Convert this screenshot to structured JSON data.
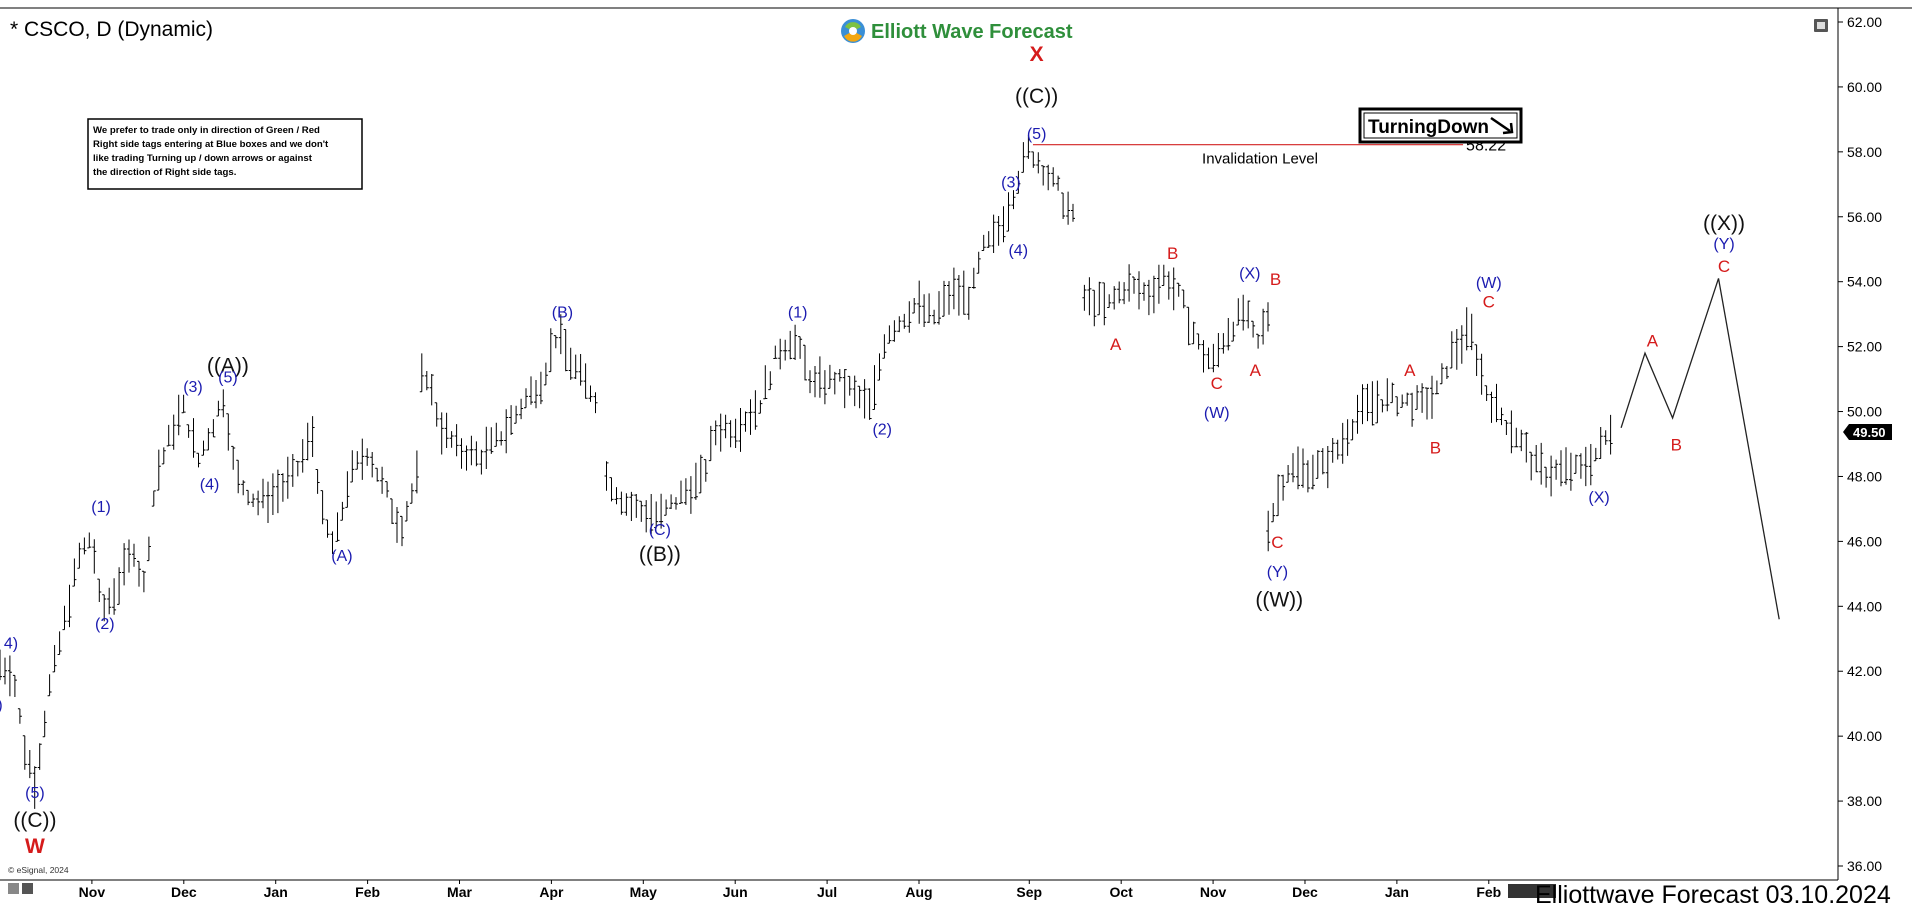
{
  "chart_title": "* CSCO, D (Dynamic)",
  "brand": "Elliott Wave Forecast",
  "disclaimer": [
    "We prefer to trade only in direction of Green / Red",
    "Right side tags entering at Blue boxes and we don't",
    "like trading Turning up / down arrows or against",
    "the direction of Right side tags."
  ],
  "tag_label": "TurningDown",
  "invalidation_label": "Invalidation Level",
  "invalidation_value": "58.22",
  "current_price": "49.50",
  "copyright": "© eSignal, 2024",
  "footer": "Elliottwave Forecast 03.10.2024",
  "colors": {
    "blue": "#1b1bb0",
    "red": "#d51b1b",
    "black": "#111111",
    "brand_green": "#2f8f3b",
    "invalidation": "#d22222"
  },
  "chart_data": {
    "type": "ohlc",
    "ylim": [
      36,
      62
    ],
    "y_ticks": [
      "36.00",
      "38.00",
      "40.00",
      "42.00",
      "44.00",
      "46.00",
      "48.00",
      "50.00",
      "52.00",
      "54.00",
      "56.00",
      "58.00",
      "60.00",
      "62.00"
    ],
    "x_ticks": [
      "Nov",
      "Dec",
      "Jan",
      "Feb",
      "Mar",
      "Apr",
      "May",
      "Jun",
      "Jul",
      "Aug",
      "Sep",
      "Oct",
      "Nov",
      "Dec",
      "Jan",
      "Feb"
    ],
    "x_range": [
      0,
      100
    ],
    "x_tick_pos": [
      5,
      10,
      15,
      20,
      25,
      30,
      35,
      40,
      45,
      50,
      56,
      61,
      66,
      71,
      76,
      81
    ],
    "segments": [
      {
        "x0": 0,
        "x1": 33,
        "pts": [
          [
            0,
            42.2
          ],
          [
            0.7,
            42
          ],
          [
            1.3,
            39.7
          ],
          [
            1.9,
            38.6
          ],
          [
            2.7,
            41.5
          ],
          [
            3.5,
            43.5
          ],
          [
            4.3,
            45.5
          ],
          [
            5,
            46.2
          ],
          [
            5.5,
            43.8
          ],
          [
            6.3,
            44.5
          ],
          [
            7.3,
            45.8
          ],
          [
            7.8,
            44.5
          ],
          [
            8.5,
            48
          ],
          [
            9.5,
            49.6
          ],
          [
            10,
            50.1
          ],
          [
            10.8,
            48.5
          ],
          [
            11.5,
            49.5
          ],
          [
            12.2,
            50.5
          ],
          [
            12.8,
            48
          ],
          [
            14,
            47.2
          ],
          [
            15,
            47.5
          ],
          [
            16,
            48
          ],
          [
            17,
            49.3
          ],
          [
            17.6,
            46.6
          ],
          [
            18.2,
            45.8
          ],
          [
            19,
            48
          ],
          [
            20,
            48.8
          ],
          [
            21,
            47.5
          ],
          [
            21.8,
            46.4
          ],
          [
            22.7,
            48
          ],
          [
            23,
            51.6
          ],
          [
            24,
            49.5
          ],
          [
            25,
            48.8
          ],
          [
            26.2,
            48.6
          ],
          [
            27.6,
            49.5
          ],
          [
            28.5,
            50.3
          ],
          [
            29.5,
            51
          ],
          [
            30.3,
            52.4
          ],
          [
            31,
            51.6
          ],
          [
            31.8,
            50.9
          ],
          [
            32.5,
            50.4
          ]
        ]
      },
      {
        "x0": 33,
        "x1": 59,
        "pts": [
          [
            33,
            48
          ],
          [
            34,
            47.2
          ],
          [
            35,
            46.9
          ],
          [
            36,
            46.8
          ],
          [
            37,
            47.4
          ],
          [
            38.2,
            47.9
          ],
          [
            39,
            49.5
          ],
          [
            40,
            49.5
          ],
          [
            41.3,
            50.2
          ],
          [
            42.3,
            51.8
          ],
          [
            43.1,
            52.3
          ],
          [
            44.3,
            50.8
          ],
          [
            45.5,
            51
          ],
          [
            46.6,
            50.5
          ],
          [
            47.4,
            50.1
          ],
          [
            48.2,
            52.4
          ],
          [
            49,
            52.8
          ],
          [
            49.8,
            53.3
          ],
          [
            50.8,
            52.9
          ],
          [
            51.8,
            53.7
          ],
          [
            52.8,
            53.5
          ],
          [
            53.5,
            55
          ],
          [
            54.2,
            55.4
          ],
          [
            55,
            56.5
          ],
          [
            55.5,
            57.4
          ],
          [
            56,
            58.1
          ],
          [
            57.5,
            56.9
          ],
          [
            58.5,
            55.8
          ]
        ]
      },
      {
        "x0": 59,
        "x1": 69,
        "pts": [
          [
            59,
            53.5
          ],
          [
            60.2,
            53.2
          ],
          [
            61.3,
            53.9
          ],
          [
            62.5,
            53.6
          ],
          [
            63.4,
            54.2
          ],
          [
            64.3,
            53.4
          ],
          [
            65.3,
            51.9
          ],
          [
            66,
            51.5
          ],
          [
            66.7,
            52.4
          ],
          [
            67.7,
            53.1
          ],
          [
            68.4,
            52
          ],
          [
            69,
            53
          ]
        ]
      },
      {
        "x0": 69,
        "x1": 88,
        "pts": [
          [
            69,
            46.5
          ],
          [
            70,
            48.2
          ],
          [
            71,
            48.2
          ],
          [
            72,
            48.3
          ],
          [
            73,
            49
          ],
          [
            73.8,
            49.9
          ],
          [
            74.8,
            50.3
          ],
          [
            75.5,
            50.4
          ],
          [
            76.5,
            50.3
          ],
          [
            77.3,
            50.2
          ],
          [
            78.2,
            50.6
          ],
          [
            79,
            51.8
          ],
          [
            80,
            52.5
          ],
          [
            80.8,
            50.7
          ],
          [
            81.5,
            50
          ],
          [
            82.5,
            49.3
          ],
          [
            83.4,
            48.4
          ],
          [
            84.2,
            48.1
          ],
          [
            85.1,
            48.2
          ],
          [
            86,
            48.2
          ],
          [
            87,
            48.8
          ],
          [
            87.8,
            49.6
          ]
        ]
      }
    ],
    "projection": {
      "pts": [
        [
          88.2,
          49.5
        ],
        [
          89.5,
          51.8
        ],
        [
          91,
          49.8
        ],
        [
          93.5,
          54.1
        ],
        [
          96.8,
          43.6
        ]
      ]
    },
    "labels": [
      {
        "x": 0.6,
        "y": 42.7,
        "t": "4)",
        "c": "blue",
        "s": 16
      },
      {
        "x": 0,
        "y": 40.8,
        "t": ")",
        "c": "blue",
        "s": 16
      },
      {
        "x": 1.9,
        "y": 38.1,
        "t": "(5)",
        "c": "blue",
        "s": 16
      },
      {
        "x": 1.9,
        "y": 37.2,
        "t": "((C))",
        "c": "black",
        "s": 21
      },
      {
        "x": 1.9,
        "y": 36.4,
        "t": "W",
        "c": "red",
        "s": 21,
        "b": 1
      },
      {
        "x": 5.5,
        "y": 46.9,
        "t": "(1)",
        "c": "blue",
        "s": 16
      },
      {
        "x": 5.7,
        "y": 43.3,
        "t": "(2)",
        "c": "blue",
        "s": 16
      },
      {
        "x": 10.5,
        "y": 50.6,
        "t": "(3)",
        "c": "blue",
        "s": 16
      },
      {
        "x": 11.4,
        "y": 47.6,
        "t": "(4)",
        "c": "blue",
        "s": 16
      },
      {
        "x": 12.4,
        "y": 51.2,
        "t": "((A))",
        "c": "black",
        "s": 21
      },
      {
        "x": 12.4,
        "y": 50.9,
        "t": "(5)",
        "c": "blue",
        "s": 16
      },
      {
        "x": 18.6,
        "y": 45.4,
        "t": "(A)",
        "c": "blue",
        "s": 16
      },
      {
        "x": 30.6,
        "y": 52.9,
        "t": "(B)",
        "c": "blue",
        "s": 16
      },
      {
        "x": 35.9,
        "y": 46.2,
        "t": "(C)",
        "c": "blue",
        "s": 16
      },
      {
        "x": 35.9,
        "y": 45.4,
        "t": "((B))",
        "c": "black",
        "s": 21
      },
      {
        "x": 43.4,
        "y": 52.9,
        "t": "(1)",
        "c": "blue",
        "s": 16
      },
      {
        "x": 48,
        "y": 49.3,
        "t": "(2)",
        "c": "blue",
        "s": 16
      },
      {
        "x": 55,
        "y": 56.9,
        "t": "(3)",
        "c": "blue",
        "s": 16
      },
      {
        "x": 55.4,
        "y": 54.8,
        "t": "(4)",
        "c": "blue",
        "s": 16
      },
      {
        "x": 56.4,
        "y": 58.4,
        "t": "(5)",
        "c": "blue",
        "s": 16
      },
      {
        "x": 56.4,
        "y": 59.5,
        "t": "((C))",
        "c": "black",
        "s": 21
      },
      {
        "x": 56.4,
        "y": 60.8,
        "t": "X",
        "c": "red",
        "s": 21,
        "b": 1
      },
      {
        "x": 60.7,
        "y": 51.9,
        "t": "A",
        "c": "red",
        "s": 17
      },
      {
        "x": 63.8,
        "y": 54.7,
        "t": "B",
        "c": "red",
        "s": 17
      },
      {
        "x": 66.2,
        "y": 50.7,
        "t": "C",
        "c": "red",
        "s": 17
      },
      {
        "x": 66.2,
        "y": 49.8,
        "t": "(W)",
        "c": "blue",
        "s": 16
      },
      {
        "x": 68,
        "y": 54.1,
        "t": "(X)",
        "c": "blue",
        "s": 16
      },
      {
        "x": 69.4,
        "y": 53.9,
        "t": "B",
        "c": "red",
        "s": 17
      },
      {
        "x": 68.3,
        "y": 51.1,
        "t": "A",
        "c": "red",
        "s": 17
      },
      {
        "x": 69.5,
        "y": 45.8,
        "t": "C",
        "c": "red",
        "s": 17
      },
      {
        "x": 69.5,
        "y": 44.9,
        "t": "(Y)",
        "c": "blue",
        "s": 16
      },
      {
        "x": 69.6,
        "y": 44,
        "t": "((W))",
        "c": "black",
        "s": 21
      },
      {
        "x": 76.7,
        "y": 51.1,
        "t": "A",
        "c": "red",
        "s": 17
      },
      {
        "x": 78.1,
        "y": 48.7,
        "t": "B",
        "c": "red",
        "s": 17
      },
      {
        "x": 81,
        "y": 53.2,
        "t": "C",
        "c": "red",
        "s": 17
      },
      {
        "x": 81,
        "y": 53.8,
        "t": "(W)",
        "c": "blue",
        "s": 16
      },
      {
        "x": 87,
        "y": 47.2,
        "t": "(X)",
        "c": "blue",
        "s": 16
      },
      {
        "x": 89.9,
        "y": 52,
        "t": "A",
        "c": "red",
        "s": 17
      },
      {
        "x": 91.2,
        "y": 48.8,
        "t": "B",
        "c": "red",
        "s": 17
      },
      {
        "x": 93.8,
        "y": 54.3,
        "t": "C",
        "c": "red",
        "s": 17
      },
      {
        "x": 93.8,
        "y": 55,
        "t": "(Y)",
        "c": "blue",
        "s": 16
      },
      {
        "x": 93.8,
        "y": 55.6,
        "t": "((X))",
        "c": "black",
        "s": 21
      }
    ]
  }
}
